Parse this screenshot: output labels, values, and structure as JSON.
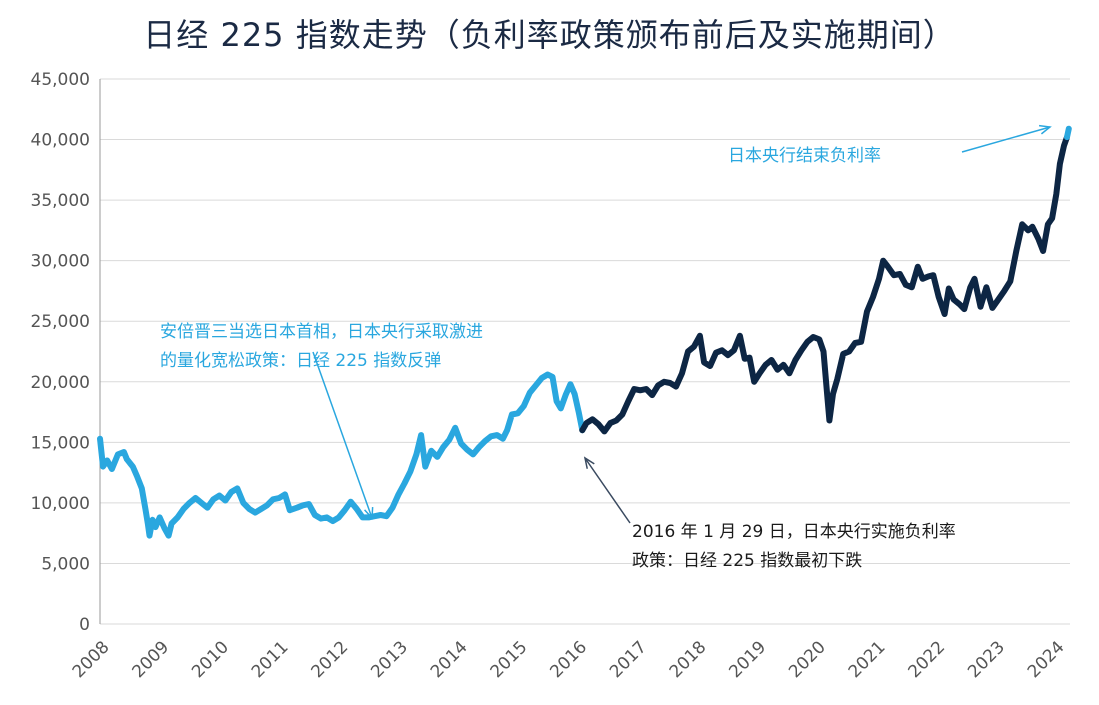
{
  "chart_data": {
    "type": "line",
    "title": "日经 225 指数走势（负利率政策颁布前后及实施期间）",
    "xlabel": "",
    "ylabel": "",
    "ylim": [
      0,
      45000
    ],
    "grid": true,
    "y_ticks": [
      "0",
      "5,000",
      "10,000",
      "15,000",
      "20,000",
      "25,000",
      "30,000",
      "35,000",
      "40,000",
      "45,000"
    ],
    "x_ticks": [
      "2008",
      "2009",
      "2010",
      "2011",
      "2012",
      "2013",
      "2014",
      "2015",
      "2016",
      "2017",
      "2018",
      "2019",
      "2020",
      "2021",
      "2022",
      "2023",
      "2024"
    ],
    "series": [
      {
        "period": "before",
        "color": "#2aa7df",
        "points": [
          [
            2008.0,
            15300
          ],
          [
            2008.05,
            13000
          ],
          [
            2008.12,
            13500
          ],
          [
            2008.2,
            12800
          ],
          [
            2008.3,
            14000
          ],
          [
            2008.4,
            14200
          ],
          [
            2008.45,
            13600
          ],
          [
            2008.55,
            13000
          ],
          [
            2008.62,
            12200
          ],
          [
            2008.7,
            11200
          ],
          [
            2008.76,
            9500
          ],
          [
            2008.8,
            8300
          ],
          [
            2008.83,
            7300
          ],
          [
            2008.88,
            8600
          ],
          [
            2008.93,
            8000
          ],
          [
            2009.0,
            8800
          ],
          [
            2009.08,
            7900
          ],
          [
            2009.15,
            7300
          ],
          [
            2009.2,
            8300
          ],
          [
            2009.3,
            8800
          ],
          [
            2009.4,
            9500
          ],
          [
            2009.5,
            10000
          ],
          [
            2009.6,
            10400
          ],
          [
            2009.7,
            10000
          ],
          [
            2009.8,
            9600
          ],
          [
            2009.9,
            10300
          ],
          [
            2010.0,
            10600
          ],
          [
            2010.1,
            10200
          ],
          [
            2010.2,
            10900
          ],
          [
            2010.3,
            11200
          ],
          [
            2010.4,
            10000
          ],
          [
            2010.5,
            9500
          ],
          [
            2010.6,
            9200
          ],
          [
            2010.7,
            9500
          ],
          [
            2010.8,
            9800
          ],
          [
            2010.9,
            10300
          ],
          [
            2011.0,
            10400
          ],
          [
            2011.1,
            10700
          ],
          [
            2011.18,
            9400
          ],
          [
            2011.3,
            9600
          ],
          [
            2011.4,
            9800
          ],
          [
            2011.5,
            9900
          ],
          [
            2011.6,
            9000
          ],
          [
            2011.7,
            8700
          ],
          [
            2011.8,
            8800
          ],
          [
            2011.9,
            8500
          ],
          [
            2012.0,
            8800
          ],
          [
            2012.1,
            9400
          ],
          [
            2012.2,
            10100
          ],
          [
            2012.3,
            9500
          ],
          [
            2012.4,
            8800
          ],
          [
            2012.5,
            8800
          ],
          [
            2012.6,
            8900
          ],
          [
            2012.7,
            9000
          ],
          [
            2012.8,
            8900
          ],
          [
            2012.9,
            9600
          ],
          [
            2013.0,
            10700
          ],
          [
            2013.1,
            11600
          ],
          [
            2013.2,
            12600
          ],
          [
            2013.3,
            14000
          ],
          [
            2013.38,
            15600
          ],
          [
            2013.45,
            13000
          ],
          [
            2013.55,
            14300
          ],
          [
            2013.65,
            13800
          ],
          [
            2013.75,
            14600
          ],
          [
            2013.85,
            15200
          ],
          [
            2013.95,
            16200
          ],
          [
            2014.05,
            14900
          ],
          [
            2014.15,
            14400
          ],
          [
            2014.25,
            14000
          ],
          [
            2014.35,
            14600
          ],
          [
            2014.45,
            15100
          ],
          [
            2014.55,
            15500
          ],
          [
            2014.65,
            15600
          ],
          [
            2014.75,
            15300
          ],
          [
            2014.82,
            16000
          ],
          [
            2014.9,
            17300
          ],
          [
            2015.0,
            17400
          ],
          [
            2015.1,
            18000
          ],
          [
            2015.2,
            19100
          ],
          [
            2015.3,
            19700
          ],
          [
            2015.4,
            20300
          ],
          [
            2015.5,
            20600
          ],
          [
            2015.58,
            20400
          ],
          [
            2015.65,
            18400
          ],
          [
            2015.72,
            17800
          ],
          [
            2015.8,
            18900
          ],
          [
            2015.88,
            19800
          ],
          [
            2015.95,
            19000
          ],
          [
            2016.02,
            17500
          ],
          [
            2016.08,
            16000
          ]
        ]
      },
      {
        "period": "negative_rates",
        "color": "#0d2644",
        "points": [
          [
            2016.08,
            16000
          ],
          [
            2016.15,
            16600
          ],
          [
            2016.25,
            16900
          ],
          [
            2016.35,
            16500
          ],
          [
            2016.45,
            15900
          ],
          [
            2016.55,
            16600
          ],
          [
            2016.65,
            16800
          ],
          [
            2016.75,
            17300
          ],
          [
            2016.85,
            18400
          ],
          [
            2016.95,
            19400
          ],
          [
            2017.05,
            19300
          ],
          [
            2017.15,
            19400
          ],
          [
            2017.25,
            18900
          ],
          [
            2017.35,
            19700
          ],
          [
            2017.45,
            20000
          ],
          [
            2017.55,
            19900
          ],
          [
            2017.65,
            19600
          ],
          [
            2017.75,
            20700
          ],
          [
            2017.85,
            22500
          ],
          [
            2017.95,
            22900
          ],
          [
            2018.05,
            23800
          ],
          [
            2018.12,
            21600
          ],
          [
            2018.22,
            21300
          ],
          [
            2018.32,
            22400
          ],
          [
            2018.42,
            22600
          ],
          [
            2018.52,
            22200
          ],
          [
            2018.62,
            22600
          ],
          [
            2018.72,
            23800
          ],
          [
            2018.8,
            21900
          ],
          [
            2018.88,
            22000
          ],
          [
            2018.96,
            20000
          ],
          [
            2019.05,
            20700
          ],
          [
            2019.15,
            21400
          ],
          [
            2019.25,
            21800
          ],
          [
            2019.35,
            21000
          ],
          [
            2019.45,
            21400
          ],
          [
            2019.55,
            20700
          ],
          [
            2019.65,
            21800
          ],
          [
            2019.75,
            22600
          ],
          [
            2019.85,
            23300
          ],
          [
            2019.95,
            23700
          ],
          [
            2020.05,
            23500
          ],
          [
            2020.12,
            22500
          ],
          [
            2020.18,
            19000
          ],
          [
            2020.22,
            16800
          ],
          [
            2020.28,
            19000
          ],
          [
            2020.35,
            20200
          ],
          [
            2020.45,
            22300
          ],
          [
            2020.55,
            22500
          ],
          [
            2020.65,
            23200
          ],
          [
            2020.75,
            23300
          ],
          [
            2020.85,
            25800
          ],
          [
            2020.95,
            27000
          ],
          [
            2021.05,
            28500
          ],
          [
            2021.12,
            30000
          ],
          [
            2021.2,
            29500
          ],
          [
            2021.3,
            28800
          ],
          [
            2021.4,
            28900
          ],
          [
            2021.5,
            28000
          ],
          [
            2021.6,
            27800
          ],
          [
            2021.7,
            29500
          ],
          [
            2021.78,
            28500
          ],
          [
            2021.88,
            28700
          ],
          [
            2021.96,
            28800
          ],
          [
            2022.05,
            27000
          ],
          [
            2022.15,
            25600
          ],
          [
            2022.22,
            27700
          ],
          [
            2022.3,
            26800
          ],
          [
            2022.4,
            26400
          ],
          [
            2022.48,
            26000
          ],
          [
            2022.58,
            27800
          ],
          [
            2022.65,
            28500
          ],
          [
            2022.75,
            26200
          ],
          [
            2022.85,
            27800
          ],
          [
            2022.95,
            26100
          ],
          [
            2023.05,
            26800
          ],
          [
            2023.15,
            27500
          ],
          [
            2023.25,
            28300
          ],
          [
            2023.35,
            30800
          ],
          [
            2023.45,
            33000
          ],
          [
            2023.55,
            32500
          ],
          [
            2023.62,
            32800
          ],
          [
            2023.72,
            31800
          ],
          [
            2023.8,
            30800
          ],
          [
            2023.88,
            33000
          ],
          [
            2023.95,
            33500
          ],
          [
            2024.02,
            35500
          ],
          [
            2024.08,
            38000
          ],
          [
            2024.15,
            39500
          ],
          [
            2024.2,
            40200
          ]
        ]
      },
      {
        "period": "after",
        "color": "#2aa7df",
        "points": [
          [
            2024.2,
            40200
          ],
          [
            2024.23,
            40900
          ]
        ]
      }
    ],
    "annotations": {
      "abe": "安倍晋三当选日本首相，日本央行采取激进的量化宽松政策：日经 225 指数反弹",
      "neg_rate_start": "2016 年 1 月 29 日，日本央行实施负利率政策：日经 225 指数最初下跌",
      "end_neg_rate": "日本央行结束负利率"
    }
  }
}
